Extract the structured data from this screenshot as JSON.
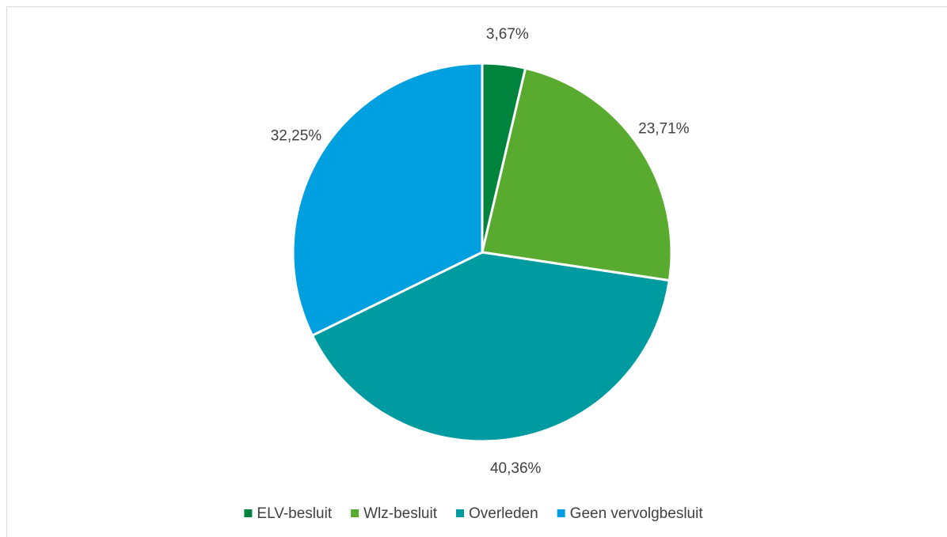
{
  "chart_data": {
    "type": "pie",
    "categories": [
      "ELV-besluit",
      "Wlz-besluit",
      "Overleden",
      "Geen vervolgbesluit"
    ],
    "values": [
      3.67,
      23.71,
      40.36,
      32.25
    ],
    "value_labels": [
      "3,67%",
      "23,71%",
      "40,36%",
      "32,25%"
    ],
    "colors": [
      "#00843d",
      "#58ab2f",
      "#009ba1",
      "#009fe0"
    ],
    "legend": "bottom"
  }
}
